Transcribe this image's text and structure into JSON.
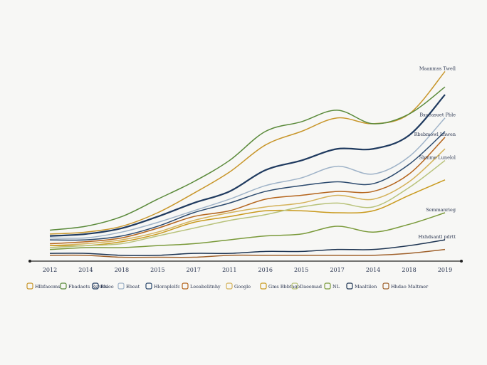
{
  "chart_data": {
    "type": "line",
    "categories": [
      "2012",
      "2014",
      "2018",
      "2015",
      "2017",
      "2011",
      "2016",
      "2015",
      "2017",
      "2014",
      "2018",
      "2019"
    ],
    "ylim": [
      0,
      100
    ],
    "series": [
      {
        "name": "Hlbfaeoms",
        "label": "Maanmss Twell",
        "color": "#c8962a",
        "values": [
          14,
          15,
          18,
          25,
          35,
          46,
          60,
          67,
          74,
          71,
          76,
          98
        ]
      },
      {
        "name": "Fbadaets Rsrdes",
        "color": "#5a8a3a",
        "values": [
          16,
          18,
          23,
          32,
          41,
          52,
          67,
          72,
          78,
          71,
          76,
          90
        ]
      },
      {
        "name": "Bhlee",
        "color": "#1f3a5f",
        "values": [
          13,
          14,
          17,
          23,
          30,
          36,
          47,
          52,
          58,
          58,
          65,
          86
        ]
      },
      {
        "name": "Ebeat",
        "label": "Bxoeasuet Pble",
        "color": "#9fb3c8",
        "values": [
          12,
          12,
          15,
          20,
          26,
          32,
          39,
          43,
          49,
          45,
          54,
          74
        ]
      },
      {
        "name": "Hloraplelfc",
        "color": "#2c4a6e",
        "values": [
          11,
          11,
          13,
          18,
          25,
          30,
          36,
          39,
          41,
          40,
          50,
          67
        ]
      },
      {
        "name": "Leeabelitnhy",
        "label": "Rbsbmowl Lnwen",
        "color": "#b5651d",
        "values": [
          9,
          10,
          12,
          17,
          23,
          26,
          32,
          34,
          36,
          36,
          45,
          64
        ]
      },
      {
        "name": "Google",
        "color": "#d4b25a",
        "values": [
          8,
          9,
          11,
          15,
          21,
          25,
          28,
          30,
          34,
          32,
          41,
          58
        ]
      },
      {
        "name": "Gms Bbbtage",
        "color": "#c99a1e",
        "values": [
          8,
          8,
          10,
          14,
          20,
          23,
          26,
          26,
          25,
          26,
          34,
          42
        ]
      },
      {
        "name": "Daeemad",
        "label": "Sbmme Lunelol",
        "color": "#b8c27a",
        "values": [
          7,
          8,
          9,
          13,
          17,
          21,
          24,
          28,
          30,
          28,
          38,
          52
        ]
      },
      {
        "name": "NL",
        "label": "Semmanrieg",
        "color": "#7a9a3a",
        "values": [
          6,
          7,
          7,
          8,
          9,
          11,
          13,
          14,
          18,
          15,
          19,
          25
        ]
      },
      {
        "name": "Maaltilen",
        "label": "Hxhdsantl pdrtt",
        "color": "#1e3553",
        "values": [
          4,
          4,
          3,
          3,
          4,
          4,
          5,
          5,
          6,
          6,
          8,
          11
        ]
      },
      {
        "name": "Hhdao Maltmer",
        "color": "#a0622d",
        "values": [
          3,
          3,
          2,
          2,
          2,
          3,
          3,
          3,
          3,
          3,
          4,
          6
        ]
      }
    ]
  }
}
